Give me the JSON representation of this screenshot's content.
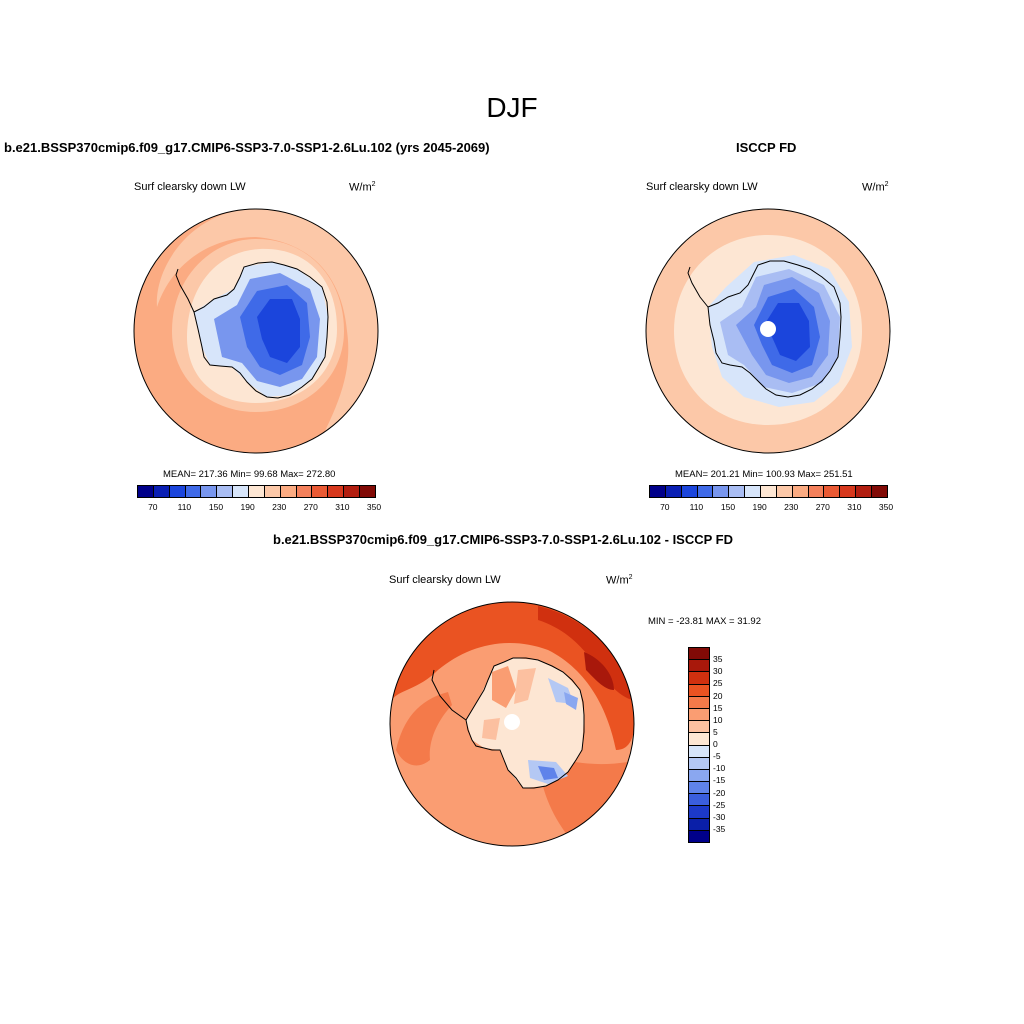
{
  "season": "DJF",
  "panel1": {
    "title": "b.e21.BSSP370cmip6.f09_g17.CMIP6-SSP3-7.0-SSP1-2.6Lu.102 (yrs 2045-2069)",
    "variable": "Surf clearsky down LW",
    "unit": "W/m",
    "unit_sup": "2",
    "stats": "MEAN= 217.36  Min=  99.68  Max= 272.80"
  },
  "panel2": {
    "title": "ISCCP FD",
    "variable": "Surf clearsky down LW",
    "unit": "W/m",
    "unit_sup": "2",
    "stats": "MEAN= 201.21  Min= 100.93  Max= 251.51"
  },
  "panel3": {
    "title": "b.e21.BSSP370cmip6.f09_g17.CMIP6-SSP3-7.0-SSP1-2.6Lu.102 - ISCCP FD",
    "variable": "Surf clearsky down LW",
    "unit": "W/m",
    "unit_sup": "2",
    "stats": "MIN = -23.81 MAX =  31.92"
  },
  "colorbar_abs": {
    "colors": [
      "#00008a",
      "#0a1fb4",
      "#1b45dc",
      "#3f6ae8",
      "#7896ee",
      "#a9bdf3",
      "#d7e5fa",
      "#fde6d3",
      "#fcc8a8",
      "#fbab82",
      "#f4805b",
      "#ea5a34",
      "#d7381d",
      "#b21e10",
      "#810a06"
    ],
    "ticks": [
      "70",
      "110",
      "150",
      "190",
      "230",
      "270",
      "310",
      "350"
    ]
  },
  "colorbar_diff": {
    "colors": [
      "#810a06",
      "#a8180b",
      "#d0300f",
      "#ea5322",
      "#f47a4a",
      "#fa9d72",
      "#fcc0a0",
      "#fde6d3",
      "#d7e5fa",
      "#b4c8f4",
      "#8aa7f0",
      "#5f83ea",
      "#3a5edd",
      "#1c39c8",
      "#0a1fa8",
      "#00008a"
    ],
    "ticks": [
      "35",
      "30",
      "25",
      "20",
      "15",
      "10",
      "5",
      "0",
      "-5",
      "-10",
      "-15",
      "-20",
      "-25",
      "-30",
      "-35"
    ]
  }
}
